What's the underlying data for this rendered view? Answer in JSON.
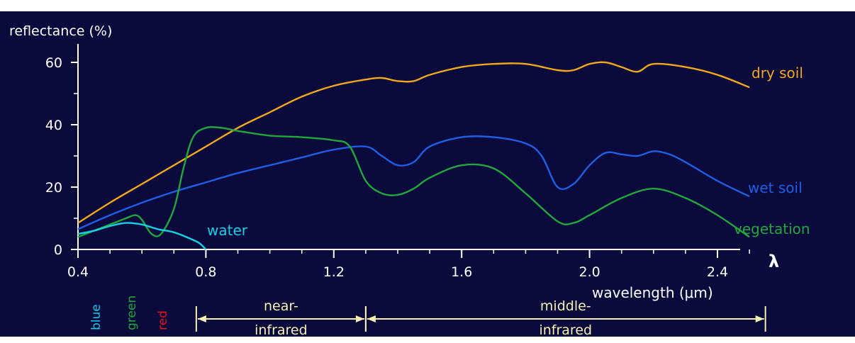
{
  "colors": {
    "background": "#0a0a3c",
    "axis": "#ffffff",
    "dry_soil": "#f2a81a",
    "wet_soil": "#1f5fe6",
    "vegetation": "#22a83a",
    "water": "#18d0e6",
    "band_blue": "#18c8e6",
    "band_green": "#22a83a",
    "band_red": "#e01818",
    "regions": "#f5f0b0"
  },
  "chart_data": {
    "type": "line",
    "ylabel": "reflectance (%)",
    "xlabel": "wavelength (μm)",
    "lambda_symbol": "λ",
    "xlim": [
      0.4,
      2.6
    ],
    "ylim": [
      0,
      63
    ],
    "xticks": [
      0.4,
      0.8,
      1.2,
      1.6,
      2.0,
      2.4
    ],
    "xtick_labels": [
      "0.4",
      "0.8",
      "1.2",
      "1.6",
      "2.0",
      "2.4"
    ],
    "yticks": [
      0,
      20,
      40,
      60
    ],
    "ytick_labels": [
      "0",
      "20",
      "40",
      "60"
    ],
    "grid": false,
    "series": [
      {
        "name": "dry soil",
        "color": "#f2a81a",
        "x": [
          0.4,
          0.5,
          0.6,
          0.7,
          0.8,
          0.9,
          1.0,
          1.1,
          1.2,
          1.3,
          1.35,
          1.4,
          1.45,
          1.5,
          1.6,
          1.7,
          1.8,
          1.9,
          1.95,
          2.0,
          2.05,
          2.1,
          2.15,
          2.2,
          2.3,
          2.4,
          2.5
        ],
        "y": [
          8.5,
          15,
          21,
          27,
          33,
          39,
          44,
          49,
          52.5,
          54.5,
          55,
          54,
          54,
          56,
          58.5,
          59.5,
          59.5,
          57.5,
          57.5,
          59.5,
          60,
          58.5,
          57,
          59.5,
          58.5,
          56,
          52
        ]
      },
      {
        "name": "wet soil",
        "color": "#1f5fe6",
        "x": [
          0.4,
          0.5,
          0.6,
          0.7,
          0.8,
          0.9,
          1.0,
          1.1,
          1.2,
          1.3,
          1.35,
          1.4,
          1.45,
          1.5,
          1.6,
          1.7,
          1.8,
          1.85,
          1.9,
          1.95,
          2.0,
          2.05,
          2.1,
          2.15,
          2.2,
          2.25,
          2.3,
          2.4,
          2.5
        ],
        "y": [
          6.5,
          11,
          15,
          18.5,
          21.5,
          24.5,
          27,
          29.5,
          32,
          33,
          30,
          27,
          28,
          33,
          36,
          36,
          34,
          30,
          20,
          21,
          27,
          31,
          30.5,
          30,
          31.5,
          30.5,
          28,
          22,
          17
        ]
      },
      {
        "name": "vegetation",
        "color": "#22a83a",
        "x": [
          0.4,
          0.45,
          0.5,
          0.55,
          0.58,
          0.6,
          0.63,
          0.66,
          0.7,
          0.73,
          0.76,
          0.8,
          0.85,
          0.9,
          1.0,
          1.1,
          1.2,
          1.25,
          1.3,
          1.35,
          1.4,
          1.45,
          1.5,
          1.6,
          1.7,
          1.8,
          1.9,
          1.95,
          2.0,
          2.1,
          2.2,
          2.3,
          2.4,
          2.5
        ],
        "y": [
          4,
          6,
          8,
          10,
          11,
          9.5,
          5,
          5,
          13,
          26,
          36,
          39,
          39,
          38,
          36.5,
          36,
          35,
          33,
          22,
          18,
          17.5,
          19.5,
          23,
          27,
          26,
          18,
          9,
          8.5,
          11,
          16.5,
          19.5,
          16.5,
          11,
          4
        ]
      },
      {
        "name": "water",
        "color": "#18d0e6",
        "x": [
          0.4,
          0.45,
          0.5,
          0.55,
          0.6,
          0.65,
          0.7,
          0.75,
          0.78,
          0.8
        ],
        "y": [
          5,
          6,
          7.5,
          8.5,
          8,
          6.5,
          5.5,
          3.5,
          2,
          0
        ]
      }
    ],
    "bands": [
      {
        "label": "blue",
        "color": "#18c8e6"
      },
      {
        "label": "green",
        "color": "#22a83a"
      },
      {
        "label": "red",
        "color": "#e01818"
      }
    ],
    "regions": [
      {
        "line1": "near-",
        "line2": "infrared",
        "x_start": 0.77,
        "x_end": 1.3
      },
      {
        "line1": "middle-",
        "line2": "infrared",
        "x_start": 1.3,
        "x_end": 2.55
      }
    ]
  }
}
